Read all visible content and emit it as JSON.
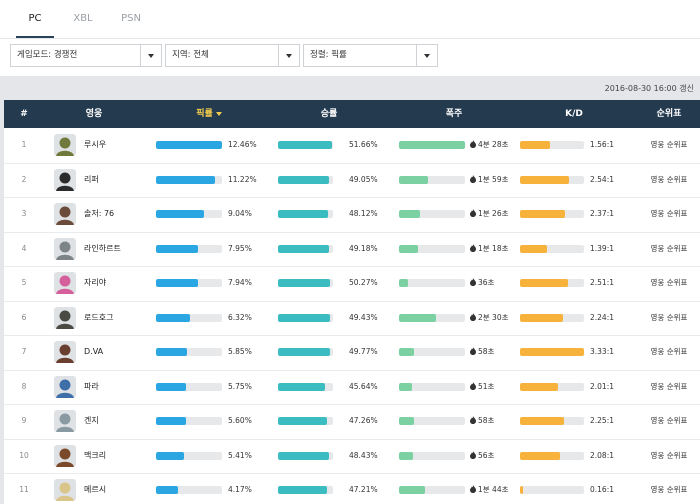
{
  "tabs": [
    {
      "label": "PC",
      "active": true
    },
    {
      "label": "XBL",
      "active": false
    },
    {
      "label": "PSN",
      "active": false
    }
  ],
  "filters": {
    "mode": "게임모드: 경쟁전",
    "region": "지역: 전체",
    "sort": "정렬: 픽률"
  },
  "updated_text": "2016-08-30 16:00 갱신",
  "colors": {
    "header_bg": "#243a4f",
    "sorted_header": "#f4cf4d",
    "pick_bar": "#2aa6e2",
    "win_bar": "#3bbcc1",
    "kill_bar": "#7cd1a2",
    "kd_bar": "#f6b23b"
  },
  "table": {
    "headers": {
      "rank": "#",
      "hero": "영웅",
      "pick": "픽률",
      "win": "승률",
      "solo": "폭주",
      "kd": "K/D",
      "ranking": "순위표"
    },
    "rows": [
      {
        "rank": "1",
        "hero": "루시우",
        "avatar_color": "#6f7a3c",
        "pick": "12.46%",
        "pick_frac": 1.0,
        "win": "51.66%",
        "win_frac": 0.98,
        "solo": "4분 28초",
        "solo_frac": 1.0,
        "kd": "1.56:1",
        "kd_frac": 0.47,
        "link": "영웅 순위표"
      },
      {
        "rank": "2",
        "hero": "리퍼",
        "avatar_color": "#2b2b2b",
        "pick": "11.22%",
        "pick_frac": 0.9,
        "win": "49.05%",
        "win_frac": 0.93,
        "solo": "1분 59초",
        "solo_frac": 0.44,
        "kd": "2.54:1",
        "kd_frac": 0.76,
        "link": "영웅 순위표"
      },
      {
        "rank": "3",
        "hero": "솔저: 76",
        "avatar_color": "#6b4b3a",
        "pick": "9.04%",
        "pick_frac": 0.73,
        "win": "48.12%",
        "win_frac": 0.91,
        "solo": "1분 26초",
        "solo_frac": 0.32,
        "kd": "2.37:1",
        "kd_frac": 0.71,
        "link": "영웅 순위표"
      },
      {
        "rank": "4",
        "hero": "라인하르트",
        "avatar_color": "#7d8488",
        "pick": "7.95%",
        "pick_frac": 0.64,
        "win": "49.18%",
        "win_frac": 0.93,
        "solo": "1분 18초",
        "solo_frac": 0.29,
        "kd": "1.39:1",
        "kd_frac": 0.42,
        "link": "영웅 순위표"
      },
      {
        "rank": "5",
        "hero": "자리야",
        "avatar_color": "#d45f9a",
        "pick": "7.94%",
        "pick_frac": 0.64,
        "win": "50.27%",
        "win_frac": 0.95,
        "solo": "36초",
        "solo_frac": 0.13,
        "kd": "2.51:1",
        "kd_frac": 0.75,
        "link": "영웅 순위표"
      },
      {
        "rank": "6",
        "hero": "로드호그",
        "avatar_color": "#4a4a44",
        "pick": "6.32%",
        "pick_frac": 0.51,
        "win": "49.43%",
        "win_frac": 0.94,
        "solo": "2분 30초",
        "solo_frac": 0.56,
        "kd": "2.24:1",
        "kd_frac": 0.67,
        "link": "영웅 순위표"
      },
      {
        "rank": "7",
        "hero": "D.VA",
        "avatar_color": "#6b3f2f",
        "pick": "5.85%",
        "pick_frac": 0.47,
        "win": "49.77%",
        "win_frac": 0.94,
        "solo": "58초",
        "solo_frac": 0.22,
        "kd": "3.33:1",
        "kd_frac": 1.0,
        "link": "영웅 순위표"
      },
      {
        "rank": "8",
        "hero": "파라",
        "avatar_color": "#3f6fa8",
        "pick": "5.75%",
        "pick_frac": 0.46,
        "win": "45.64%",
        "win_frac": 0.86,
        "solo": "51초",
        "solo_frac": 0.19,
        "kd": "2.01:1",
        "kd_frac": 0.6,
        "link": "영웅 순위표"
      },
      {
        "rank": "9",
        "hero": "겐지",
        "avatar_color": "#8a9aa2",
        "pick": "5.60%",
        "pick_frac": 0.45,
        "win": "47.26%",
        "win_frac": 0.89,
        "solo": "58초",
        "solo_frac": 0.22,
        "kd": "2.25:1",
        "kd_frac": 0.68,
        "link": "영웅 순위표"
      },
      {
        "rank": "10",
        "hero": "맥크리",
        "avatar_color": "#7a4a2a",
        "pick": "5.41%",
        "pick_frac": 0.43,
        "win": "48.43%",
        "win_frac": 0.92,
        "solo": "56초",
        "solo_frac": 0.21,
        "kd": "2.08:1",
        "kd_frac": 0.62,
        "link": "영웅 순위표"
      },
      {
        "rank": "11",
        "hero": "메르시",
        "avatar_color": "#d9c48a",
        "pick": "4.17%",
        "pick_frac": 0.33,
        "win": "47.21%",
        "win_frac": 0.89,
        "solo": "1분 44초",
        "solo_frac": 0.39,
        "kd": "0.16:1",
        "kd_frac": 0.05,
        "link": "영웅 순위표"
      }
    ]
  }
}
